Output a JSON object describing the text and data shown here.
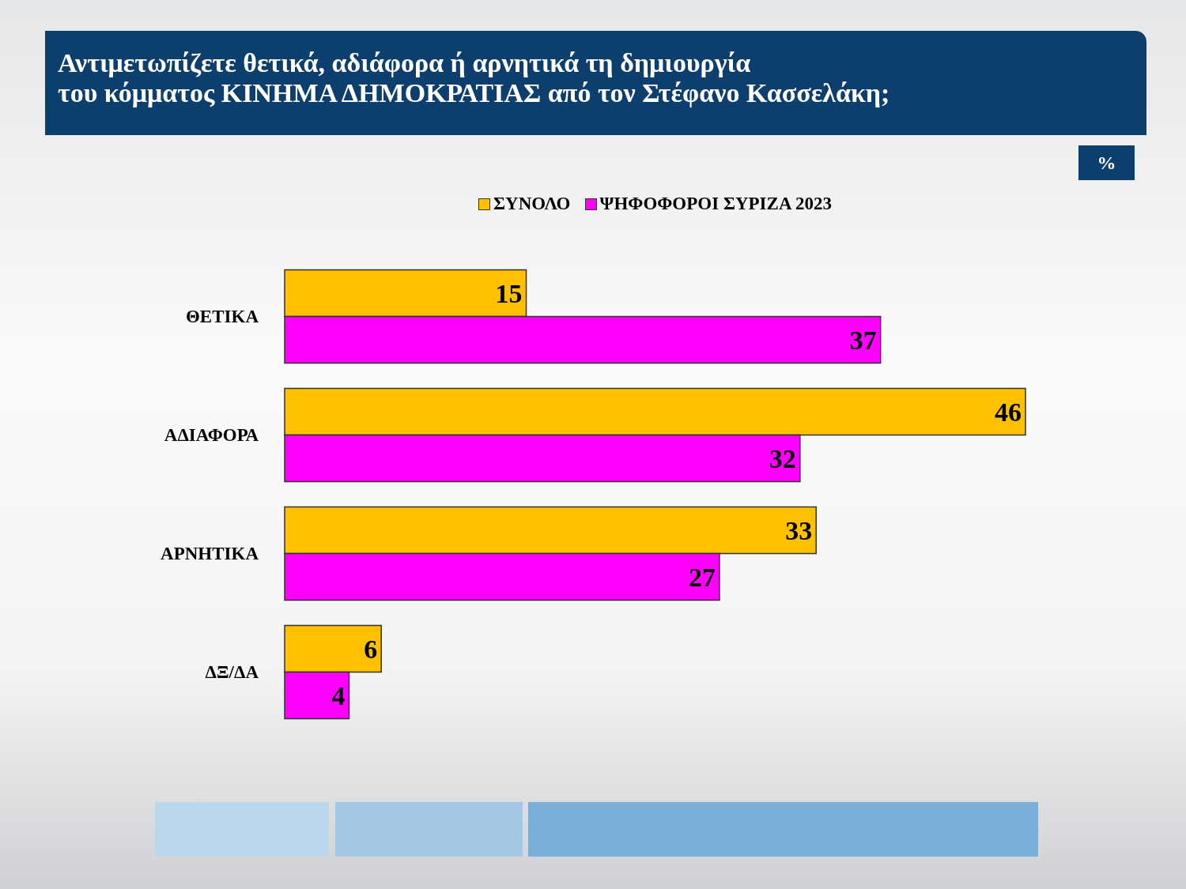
{
  "chart_data": {
    "type": "bar",
    "orientation": "horizontal",
    "title": "Αντιμετωπίζετε θετικά, αδιάφορα ή αρνητικά τη δημιουργία\nτου κόμματος ΚΙΝΗΜΑ ΔΗΜΟΚΡΑΤΙΑΣ από τον Στέφανο Κασσελάκη;",
    "annotations": [
      "%"
    ],
    "categories": [
      "ΘΕΤΙΚΑ",
      "ΑΔΙΑΦΟΡΑ",
      "ΑΡΝΗΤΙΚΑ",
      "ΔΞ/ΔΑ"
    ],
    "series": [
      {
        "name": "ΣΥΝΟΛΟ",
        "color": "#ffc000",
        "values": [
          15,
          46,
          33,
          6
        ]
      },
      {
        "name": "ΨΗΦΟΦΟΡΟΙ ΣΥΡΙΖΑ 2023",
        "color": "#ff00ff",
        "values": [
          37,
          32,
          27,
          4
        ]
      }
    ],
    "data_labels": true,
    "legend": "top",
    "grid": false
  }
}
